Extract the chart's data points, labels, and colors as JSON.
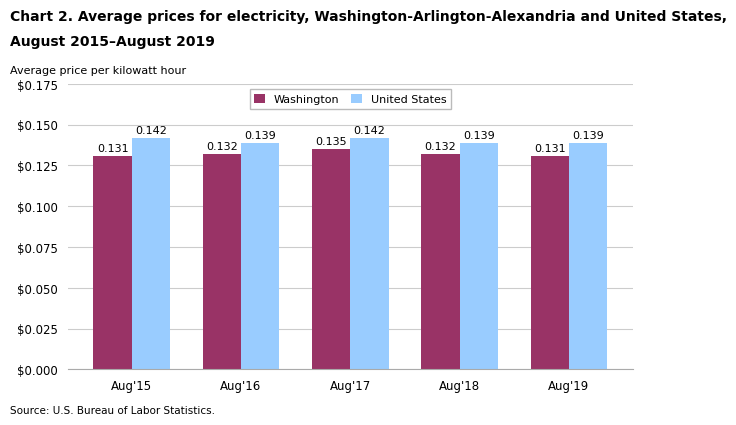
{
  "title_line1": "Chart 2. Average prices for electricity, Washington-Arlington-Alexandria and United States,",
  "title_line2": "August 2015–August 2019",
  "ylabel": "Average price per kilowatt hour",
  "source": "Source: U.S. Bureau of Labor Statistics.",
  "categories": [
    "Aug'15",
    "Aug'16",
    "Aug'17",
    "Aug'18",
    "Aug'19"
  ],
  "washington": [
    0.131,
    0.132,
    0.135,
    0.132,
    0.131
  ],
  "us": [
    0.142,
    0.139,
    0.142,
    0.139,
    0.139
  ],
  "washington_color": "#993366",
  "us_color": "#99CCFF",
  "washington_label": "Washington",
  "us_label": "United States",
  "ylim": [
    0,
    0.175
  ],
  "yticks": [
    0.0,
    0.025,
    0.05,
    0.075,
    0.1,
    0.125,
    0.15,
    0.175
  ],
  "bar_width": 0.35,
  "background_color": "#ffffff",
  "plot_bg_color": "#ffffff",
  "grid_color": "#cccccc",
  "title_fontsize": 10,
  "label_fontsize": 8,
  "tick_fontsize": 8.5,
  "annotation_fontsize": 8
}
